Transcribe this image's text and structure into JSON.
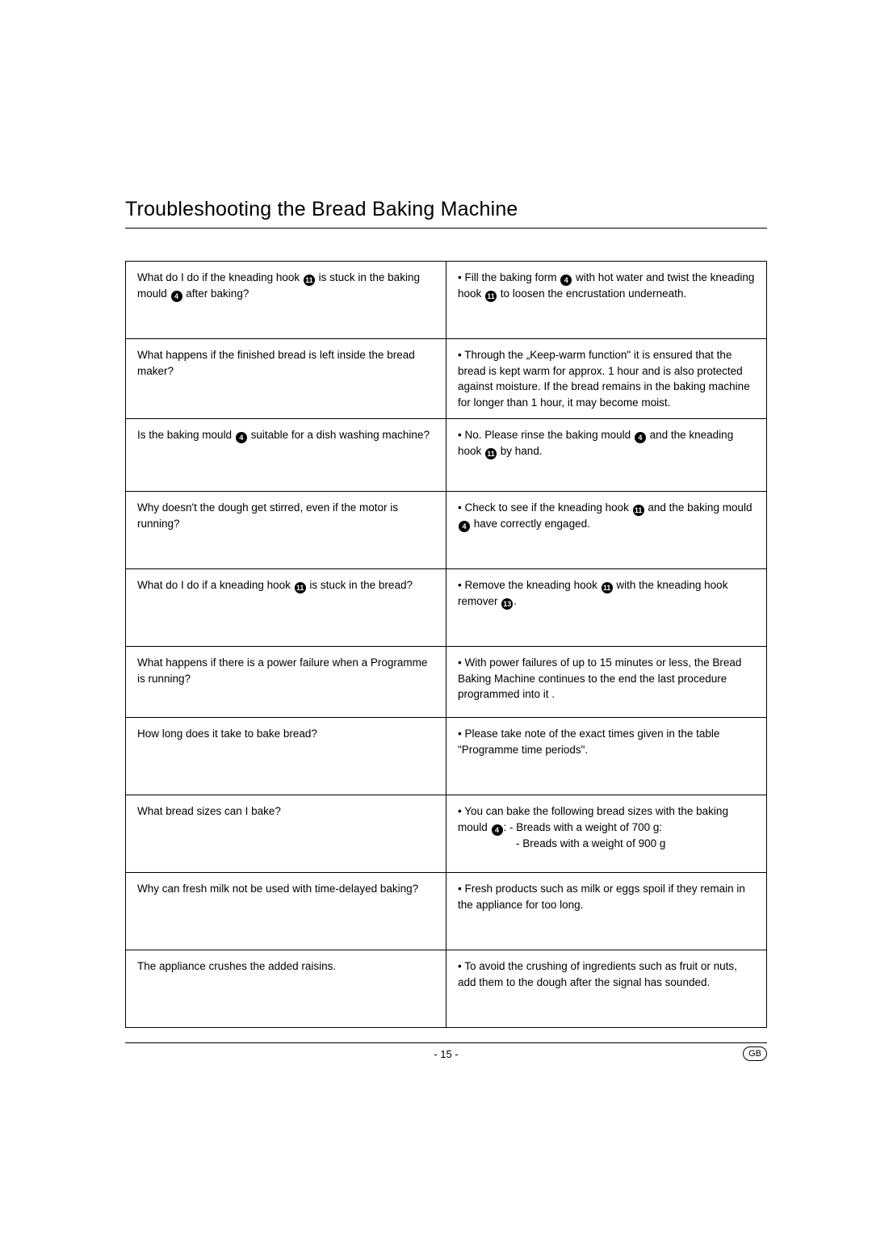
{
  "heading": "Troubleshooting the Bread Baking Machine",
  "page_number": "- 15 -",
  "lang_badge": "GB",
  "rows": [
    {
      "q": "What do I do if the kneading hook {11} is stuck in the baking mould {4} after baking?",
      "a": "• Fill the baking form {4} with hot water and twist the kneading hook {11} to loosen the encrustation underneath.",
      "row_min_height": 96
    },
    {
      "q": "What happens if the finished bread is left inside the bread maker?",
      "a": "• Through the „Keep-warm function\" it is ensured that the bread is kept warm for approx. 1 hour and is also protected against moisture. If the bread remains in the baking machine for longer than 1 hour, it may become moist.",
      "row_min_height": 0
    },
    {
      "q": "Is the baking mould {4} suitable for a dish washing machine?",
      "a": "• No. Please rinse the baking mould {4} and the kneading hook {11} by hand.",
      "row_min_height": 90
    },
    {
      "q": "Why doesn't the dough get stirred, even if the motor is running?",
      "a": "• Check to see if the kneading hook {11} and the baking mould {4} have correctly engaged.",
      "row_min_height": 96
    },
    {
      "q": "What do I do if a kneading hook {11} is stuck in the bread?",
      "a": "• Remove the kneading hook {11} with the kneading hook remover {13}.",
      "row_min_height": 96
    },
    {
      "q": "What happens if there is a power failure when a Programme is running?",
      "a": "• With power failures of up to 15 minutes or less, the Bread Baking Machine continues to the end the last procedure programmed into it .",
      "row_min_height": 88
    },
    {
      "q": "How long does it take to bake bread?",
      "a": "• Please take note of the exact times given in the table \"Programme time periods\".",
      "row_min_height": 96
    },
    {
      "q": "What bread sizes can I bake?",
      "a": "• You can bake the following bread sizes with the baking mould {4}: - Breads with a weight of 700 g:<br><span class=\"indent\">- Breads with a weight of 900 g</span>",
      "row_min_height": 96
    },
    {
      "q": "Why can fresh milk not be used with time-delayed baking?",
      "a": "• Fresh products such as milk or eggs spoil if they remain in the appliance for too long.",
      "row_min_height": 96
    },
    {
      "q": "The appliance crushes the added raisins.",
      "a": "• To avoid the crushing of ingredients such as fruit or nuts, add them to the dough after the signal has sounded.",
      "row_min_height": 96
    }
  ]
}
